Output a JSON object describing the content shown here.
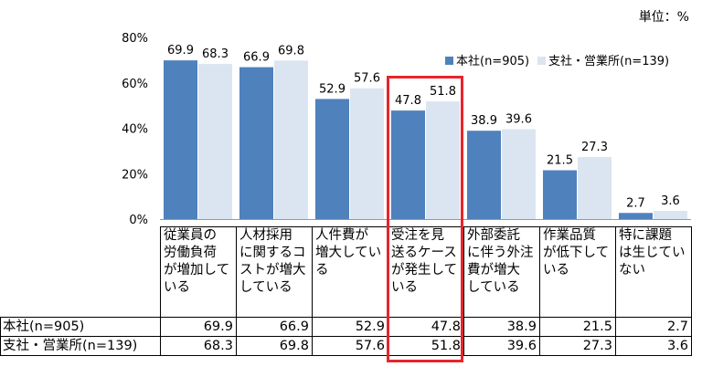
{
  "unit_label": "単位：%",
  "chart_data": {
    "type": "bar",
    "categories": [
      "従業員の\n労働負荷\nが増加して\nいる",
      "人材採用\nに関するコ\nストが増大\nしている",
      "人件費が\n増大してい\nる",
      "受注を見\n送るケース\nが発生して\nいる",
      "外部委託\nに伴う外注\n費が増大\nしている",
      "作業品質\nが低下して\nいる",
      "特に課題\nは生じてい\nない"
    ],
    "series": [
      {
        "name": "本社(n=905)",
        "values": [
          69.9,
          66.9,
          52.9,
          47.8,
          38.9,
          21.5,
          2.7
        ]
      },
      {
        "name": "支社・営業所(n=139)",
        "values": [
          68.3,
          69.8,
          57.6,
          51.8,
          39.6,
          27.3,
          3.6
        ]
      }
    ],
    "y_ticks": [
      "80%",
      "60%",
      "40%",
      "20%",
      "0%"
    ],
    "ylim": [
      0,
      80
    ],
    "legend_position": "top-right",
    "highlighted_category": "受注を見\n送るケース\nが発生して\nいる",
    "colors": {
      "series1": "#4f81bd",
      "series2": "#dbe5f1",
      "highlight": "#e8242c"
    }
  }
}
